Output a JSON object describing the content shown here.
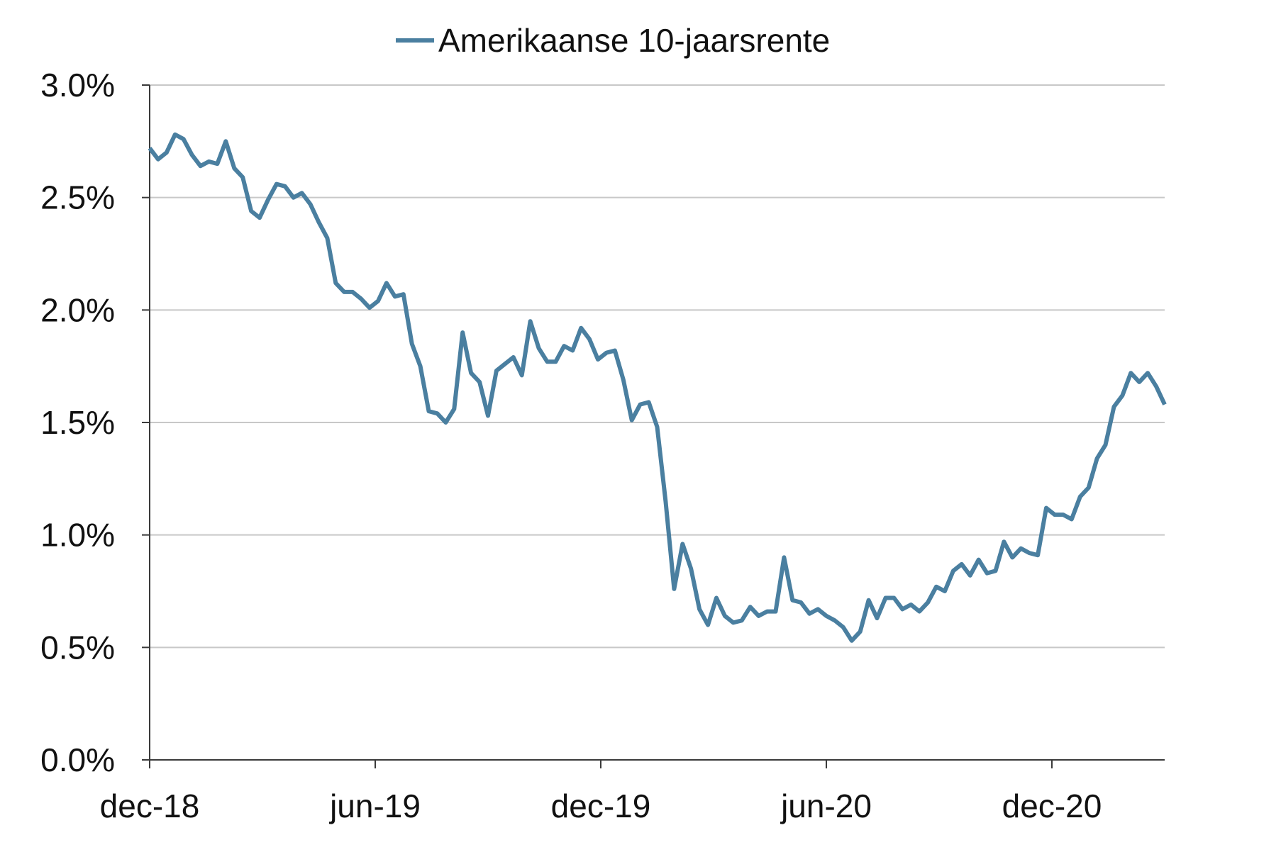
{
  "chart_data": {
    "type": "line",
    "title": "",
    "xlabel": "",
    "ylabel": "",
    "legend_position": "top-center",
    "grid": true,
    "ylim": [
      0.0,
      3.0
    ],
    "x_range": [
      "2018-12",
      "2021-03"
    ],
    "y_ticks": [
      "0.0%",
      "0.5%",
      "1.0%",
      "1.5%",
      "2.0%",
      "2.5%",
      "3.0%"
    ],
    "x_ticks": [
      "dec-18",
      "jun-19",
      "dec-19",
      "jun-20",
      "dec-20"
    ],
    "series": [
      {
        "name": "Amerikaanse 10-jaarsrente",
        "color": "#4a7fa0",
        "values": [
          2.72,
          2.67,
          2.7,
          2.78,
          2.76,
          2.69,
          2.64,
          2.66,
          2.65,
          2.75,
          2.63,
          2.59,
          2.44,
          2.41,
          2.49,
          2.56,
          2.55,
          2.5,
          2.52,
          2.47,
          2.39,
          2.32,
          2.12,
          2.08,
          2.08,
          2.05,
          2.01,
          2.04,
          2.12,
          2.06,
          2.07,
          1.85,
          1.75,
          1.55,
          1.54,
          1.5,
          1.56,
          1.9,
          1.72,
          1.68,
          1.53,
          1.73,
          1.76,
          1.79,
          1.71,
          1.95,
          1.83,
          1.77,
          1.77,
          1.84,
          1.82,
          1.92,
          1.87,
          1.78,
          1.81,
          1.82,
          1.69,
          1.51,
          1.58,
          1.59,
          1.48,
          1.15,
          0.76,
          0.96,
          0.85,
          0.67,
          0.6,
          0.72,
          0.64,
          0.61,
          0.62,
          0.68,
          0.64,
          0.66,
          0.66,
          0.9,
          0.71,
          0.7,
          0.65,
          0.67,
          0.64,
          0.62,
          0.59,
          0.53,
          0.57,
          0.71,
          0.63,
          0.72,
          0.72,
          0.67,
          0.69,
          0.66,
          0.7,
          0.77,
          0.75,
          0.84,
          0.87,
          0.82,
          0.89,
          0.83,
          0.84,
          0.97,
          0.9,
          0.94,
          0.92,
          0.91,
          1.12,
          1.09,
          1.09,
          1.07,
          1.17,
          1.21,
          1.34,
          1.4,
          1.57,
          1.62,
          1.72,
          1.68,
          1.72,
          1.66,
          1.58
        ]
      }
    ]
  }
}
